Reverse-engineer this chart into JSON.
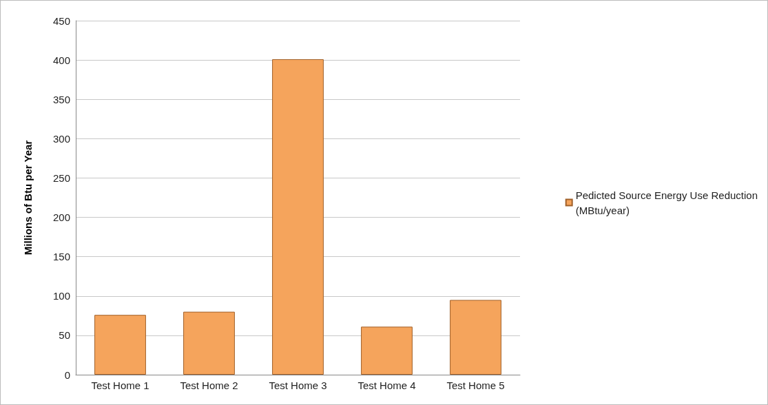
{
  "chart_data": {
    "type": "bar",
    "ylabel": "Millions of Btu per Year",
    "categories": [
      "Test Home 1",
      "Test Home 2",
      "Test Home 3",
      "Test Home 4",
      "Test Home 5"
    ],
    "series": [
      {
        "name": "Pedicted Source Energy Use Reduction\n(MBtu/year)",
        "color": "#f5a45c",
        "values": [
          76,
          80,
          401,
          61,
          95
        ]
      }
    ],
    "ylim": [
      0,
      450
    ],
    "yticks": [
      0,
      50,
      100,
      150,
      200,
      250,
      300,
      350,
      400,
      450
    ],
    "grid": "y",
    "legend": "right"
  }
}
